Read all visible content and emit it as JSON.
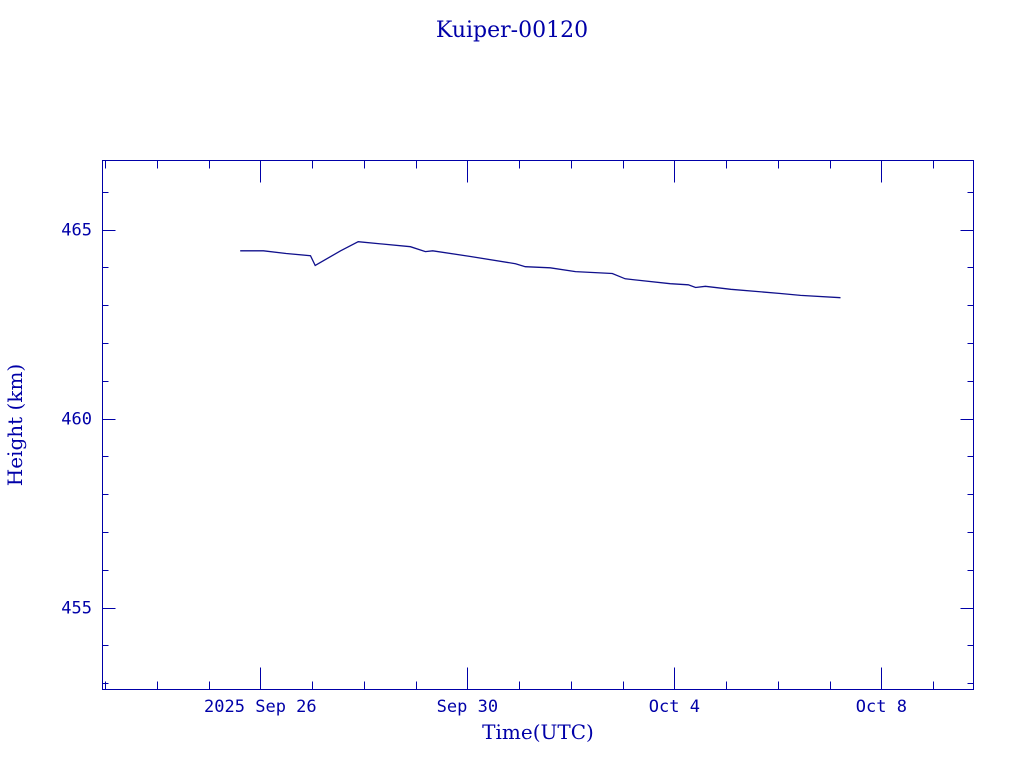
{
  "chart_data": {
    "type": "line",
    "title": "Kuiper-00120",
    "xlabel": "Time(UTC)",
    "ylabel": "Height (km)",
    "x_units": "days since 2025 Sep 26 00:00 UTC",
    "xlim": [
      -3.05,
      13.78
    ],
    "ylim": [
      452.83,
      466.83
    ],
    "x_ticks": [
      {
        "value": 0,
        "label": "2025 Sep 26"
      },
      {
        "value": 4,
        "label": "Sep 30"
      },
      {
        "value": 8,
        "label": "Oct  4"
      },
      {
        "value": 12,
        "label": "Oct  8"
      }
    ],
    "x_minor_step": 1,
    "y_ticks": [
      {
        "value": 455,
        "label": "455"
      },
      {
        "value": 460,
        "label": "460"
      },
      {
        "value": 465,
        "label": "465"
      }
    ],
    "y_minor_step": 1,
    "grid": false,
    "colors": {
      "axis": "#0000a8",
      "line": "#10108c"
    },
    "series": [
      {
        "name": "Kuiper-00120",
        "x": [
          -0.39,
          0.06,
          0.5,
          0.97,
          1.06,
          1.55,
          1.89,
          2.9,
          3.19,
          3.33,
          4.06,
          4.93,
          5.12,
          5.6,
          6.09,
          6.8,
          7.05,
          7.92,
          8.27,
          8.41,
          8.6,
          9.09,
          10.05,
          10.44,
          11.21
        ],
        "y": [
          464.44,
          464.44,
          464.37,
          464.31,
          464.05,
          464.44,
          464.68,
          464.55,
          464.42,
          464.44,
          464.29,
          464.1,
          464.02,
          463.99,
          463.89,
          463.84,
          463.7,
          463.57,
          463.54,
          463.47,
          463.5,
          463.42,
          463.31,
          463.26,
          463.2
        ]
      }
    ]
  }
}
